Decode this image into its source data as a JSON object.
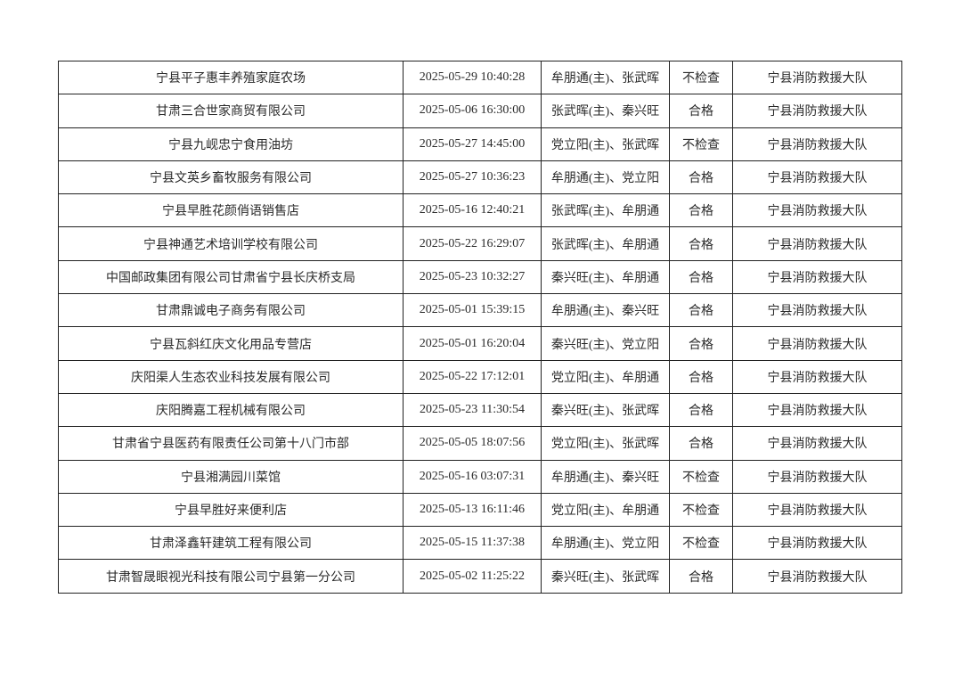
{
  "table": {
    "rows": [
      {
        "name": "宁县平子惠丰养殖家庭农场",
        "time": "2025-05-29 10:40:28",
        "inspectors": "牟朋通(主)、张武晖",
        "result": "不检查",
        "unit": "宁县消防救援大队"
      },
      {
        "name": "甘肃三合世家商贸有限公司",
        "time": "2025-05-06 16:30:00",
        "inspectors": "张武晖(主)、秦兴旺",
        "result": "合格",
        "unit": "宁县消防救援大队"
      },
      {
        "name": "宁县九岘忠宁食用油坊",
        "time": "2025-05-27 14:45:00",
        "inspectors": "党立阳(主)、张武晖",
        "result": "不检查",
        "unit": "宁县消防救援大队"
      },
      {
        "name": "宁县文英乡畜牧服务有限公司",
        "time": "2025-05-27 10:36:23",
        "inspectors": "牟朋通(主)、党立阳",
        "result": "合格",
        "unit": "宁县消防救援大队"
      },
      {
        "name": "宁县早胜花颜俏语销售店",
        "time": "2025-05-16 12:40:21",
        "inspectors": "张武晖(主)、牟朋通",
        "result": "合格",
        "unit": "宁县消防救援大队"
      },
      {
        "name": "宁县神通艺术培训学校有限公司",
        "time": "2025-05-22 16:29:07",
        "inspectors": "张武晖(主)、牟朋通",
        "result": "合格",
        "unit": "宁县消防救援大队"
      },
      {
        "name": "中国邮政集团有限公司甘肃省宁县长庆桥支局",
        "time": "2025-05-23 10:32:27",
        "inspectors": "秦兴旺(主)、牟朋通",
        "result": "合格",
        "unit": "宁县消防救援大队"
      },
      {
        "name": "甘肃鼎诚电子商务有限公司",
        "time": "2025-05-01 15:39:15",
        "inspectors": "牟朋通(主)、秦兴旺",
        "result": "合格",
        "unit": "宁县消防救援大队"
      },
      {
        "name": "宁县瓦斜红庆文化用品专营店",
        "time": "2025-05-01 16:20:04",
        "inspectors": "秦兴旺(主)、党立阳",
        "result": "合格",
        "unit": "宁县消防救援大队"
      },
      {
        "name": "庆阳渠人生态农业科技发展有限公司",
        "time": "2025-05-22 17:12:01",
        "inspectors": "党立阳(主)、牟朋通",
        "result": "合格",
        "unit": "宁县消防救援大队"
      },
      {
        "name": "庆阳腾嘉工程机械有限公司",
        "time": "2025-05-23 11:30:54",
        "inspectors": "秦兴旺(主)、张武晖",
        "result": "合格",
        "unit": "宁县消防救援大队"
      },
      {
        "name": "甘肃省宁县医药有限责任公司第十八门市部",
        "time": "2025-05-05 18:07:56",
        "inspectors": "党立阳(主)、张武晖",
        "result": "合格",
        "unit": "宁县消防救援大队"
      },
      {
        "name": "宁县湘满园川菜馆",
        "time": "2025-05-16 03:07:31",
        "inspectors": "牟朋通(主)、秦兴旺",
        "result": "不检查",
        "unit": "宁县消防救援大队"
      },
      {
        "name": "宁县早胜好来便利店",
        "time": "2025-05-13 16:11:46",
        "inspectors": "党立阳(主)、牟朋通",
        "result": "不检查",
        "unit": "宁县消防救援大队"
      },
      {
        "name": "甘肃泽鑫轩建筑工程有限公司",
        "time": "2025-05-15 11:37:38",
        "inspectors": "牟朋通(主)、党立阳",
        "result": "不检查",
        "unit": "宁县消防救援大队"
      },
      {
        "name": "甘肃智晟眼视光科技有限公司宁县第一分公司",
        "time": "2025-05-02 11:25:22",
        "inspectors": "秦兴旺(主)、张武晖",
        "result": "合格",
        "unit": "宁县消防救援大队"
      }
    ]
  }
}
